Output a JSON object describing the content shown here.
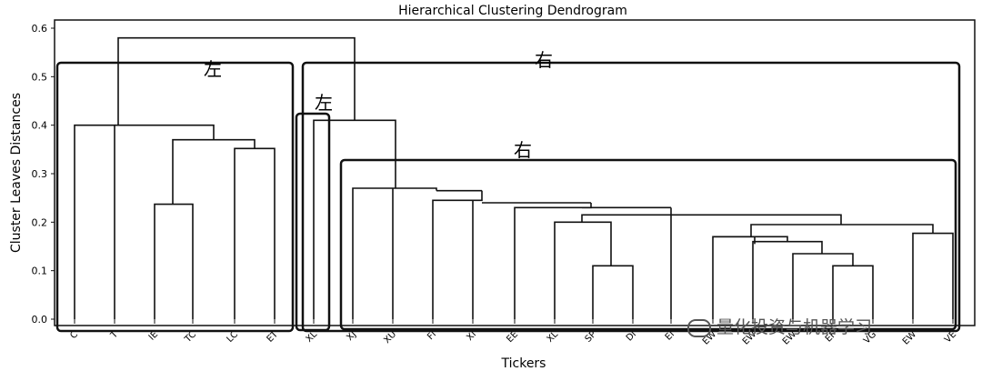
{
  "chart_data": {
    "type": "dendrogram",
    "title": "Hierarchical Clustering Dendrogram",
    "xlabel": "Tickers",
    "ylabel": "Cluster Leaves Distances",
    "ylim": [
      0,
      0.6
    ],
    "yticks": [
      "0.0",
      "0.1",
      "0.2",
      "0.3",
      "0.4",
      "0.5",
      "0.6"
    ],
    "grid": false,
    "leaves": [
      "C",
      "T",
      "IE",
      "TC",
      "LC",
      "ET",
      "XL",
      "XJ",
      "XU",
      "FI",
      "XI",
      "EE",
      "XL",
      "SP",
      "DI",
      "EI",
      "EW",
      "EW",
      "EW",
      "EF",
      "VG",
      "EW",
      "VE"
    ],
    "merges": [
      {
        "left": 9,
        "right": 10,
        "height": 0.11
      },
      {
        "left": 18,
        "right": 19,
        "height": 0.11
      },
      {
        "left": 20,
        "right": 21,
        "height": 0.177
      },
      {
        "left": 7,
        "right": 8,
        "height": 0.12
      },
      {
        "left": 16,
        "right": 17,
        "height": 0.13
      },
      {
        "left": 13,
        "right": 14,
        "height": 0.155
      },
      {
        "left": 15,
        "right": 12,
        "height": 0.165
      },
      {
        "left": 11,
        "right": 16,
        "height": 0.195
      },
      {
        "left": 6,
        "right": 22,
        "height": 0.2
      },
      {
        "left": 0,
        "right": 1,
        "height": 0.4
      },
      {
        "left": 2,
        "right": 3,
        "height": 0.237
      },
      {
        "left": 4,
        "right": 5,
        "height": 0.352
      },
      {
        "left": 25,
        "right": 26,
        "height": 0.37
      },
      {
        "left": 24,
        "right": 27,
        "height": 0.4
      }
    ],
    "structure": [
      [
        0.4,
        0.4
      ],
      [
        0.237,
        0.237
      ]
    ]
  },
  "annotations": {
    "left_outer": "左",
    "right_outer": "右",
    "left_inner": "左",
    "right_inner": "右"
  },
  "watermark": "量化投资与机器学习"
}
